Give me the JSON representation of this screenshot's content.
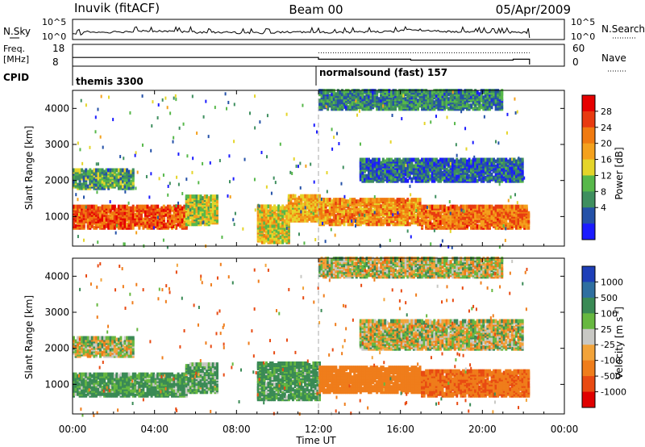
{
  "header": {
    "station": "Inuvik (fitACF)",
    "beam": "Beam 00",
    "date": "05/Apr/2009"
  },
  "sky_panel": {
    "left_label": "N.Sky",
    "right_label": "N.Search",
    "left_ticks": [
      "10^5",
      "10^0"
    ],
    "right_ticks": [
      "10^5",
      "10^0"
    ]
  },
  "freq_panel": {
    "left_label_1": "Freq.",
    "left_label_2": "[MHz]",
    "left_ticks": [
      "18",
      "8"
    ],
    "right_label": "Nave",
    "right_ticks": [
      "60",
      "0"
    ]
  },
  "cpid_panel": {
    "label": "CPID",
    "programs": [
      {
        "name": "themis 3300",
        "start_hour": 0
      },
      {
        "name": "normalsound (fast) 157",
        "start_hour": 12
      }
    ]
  },
  "x_axis": {
    "label": "Time UT",
    "ticks": [
      "00:00",
      "04:00",
      "08:00",
      "12:00",
      "16:00",
      "20:00",
      "00:00"
    ],
    "range_hours": [
      0,
      24
    ]
  },
  "power_panel": {
    "ylabel": "Slant Range [km]",
    "yticks": [
      "1000",
      "2000",
      "3000",
      "4000"
    ],
    "colorbar_label": "Power [dB]",
    "colorbar_ticks": [
      "4",
      "8",
      "12",
      "16",
      "20",
      "24",
      "28"
    ],
    "colors": [
      "#1b1bff",
      "#2451a8",
      "#3f8f5f",
      "#57b84a",
      "#e5d52a",
      "#f4a11d",
      "#f07a10",
      "#e83a10",
      "#e60000"
    ]
  },
  "velocity_panel": {
    "ylabel": "Slant Range [km]",
    "yticks": [
      "1000",
      "2000",
      "3000",
      "4000"
    ],
    "colorbar_label": "Velocity [m s",
    "colorbar_label_sup": "-1",
    "colorbar_label_end": "]",
    "colorbar_ticks": [
      "1000",
      "500",
      "100",
      "25",
      "-25",
      "-100",
      "-500",
      "-1000"
    ],
    "colors": [
      "#1e3fb8",
      "#2f6fa0",
      "#3a8a55",
      "#67b840",
      "#c8c8c4",
      "#f2a33a",
      "#ef7d1b",
      "#e84a12",
      "#e00000"
    ]
  },
  "chart_data": [
    {
      "type": "line",
      "title": "N.Sky / N.Search",
      "x": [
        0.0,
        0.5,
        1.0,
        2.0,
        3.0,
        4.0,
        5.0,
        6.0,
        8.0,
        10.0,
        12.0,
        14.0,
        16.0,
        17.0,
        18.0,
        20.0,
        22.3
      ],
      "series": [
        {
          "name": "N.Sky",
          "values": [
            1.2,
            2.0,
            1.8,
            1.9,
            2.2,
            2.1,
            1.9,
            1.7,
            1.6,
            1.8,
            1.7,
            1.9,
            2.5,
            2.2,
            1.9,
            1.7,
            1.6
          ]
        }
      ],
      "xlim": [
        0,
        24
      ]
    },
    {
      "type": "line",
      "title": "Freq. [MHz] / Nave",
      "x": [
        0.0,
        12.0,
        16.5,
        18.0,
        21.5,
        22.3
      ],
      "series": [
        {
          "name": "Freq.",
          "values": [
            12.0,
            11.0,
            10.5,
            10.5,
            11.0,
            11.0
          ]
        },
        {
          "name": "Nave",
          "values": [
            40,
            40,
            40,
            40,
            40,
            40
          ]
        }
      ],
      "xlim": [
        0,
        24
      ]
    },
    {
      "type": "heatmap",
      "title": "Power [dB]",
      "ylabel": "Slant Range [km]",
      "xlabel": "Time UT",
      "xlim": [
        0,
        24
      ],
      "ylim": [
        180,
        4500
      ],
      "color_scale": [
        0,
        30
      ],
      "bands": [
        {
          "t0": 0.0,
          "t1": 5.5,
          "r0": 700,
          "r1": 1300,
          "value": 24
        },
        {
          "t0": 0.0,
          "t1": 3.0,
          "r0": 1800,
          "r1": 2300,
          "value": 10
        },
        {
          "t0": 5.5,
          "t1": 7.0,
          "r0": 800,
          "r1": 1600,
          "value": 14
        },
        {
          "t0": 9.0,
          "t1": 10.5,
          "r0": 300,
          "r1": 1300,
          "value": 16
        },
        {
          "t0": 10.5,
          "t1": 12.0,
          "r0": 900,
          "r1": 1600,
          "value": 18
        },
        {
          "t0": 12.0,
          "t1": 17.0,
          "r0": 800,
          "r1": 1500,
          "value": 20
        },
        {
          "t0": 17.0,
          "t1": 22.3,
          "r0": 700,
          "r1": 1300,
          "value": 22
        },
        {
          "t0": 12.0,
          "t1": 21.0,
          "r0": 4000,
          "r1": 4500,
          "value": 8
        },
        {
          "t0": 14.0,
          "t1": 22.0,
          "r0": 2000,
          "r1": 2600,
          "value": 6
        }
      ]
    },
    {
      "type": "heatmap",
      "title": "Velocity [m s-1]",
      "ylabel": "Slant Range [km]",
      "xlabel": "Time UT",
      "xlim": [
        0,
        24
      ],
      "ylim": [
        180,
        4500
      ],
      "color_scale": [
        -1000,
        1000
      ],
      "bands": [
        {
          "t0": 0.0,
          "t1": 5.5,
          "r0": 700,
          "r1": 1300,
          "value": 150
        },
        {
          "t0": 0.0,
          "t1": 3.0,
          "r0": 1800,
          "r1": 2300,
          "value": 0
        },
        {
          "t0": 5.5,
          "t1": 7.0,
          "r0": 800,
          "r1": 1600,
          "value": 120
        },
        {
          "t0": 9.0,
          "t1": 12.0,
          "r0": 600,
          "r1": 1600,
          "value": 150
        },
        {
          "t0": 12.0,
          "t1": 17.0,
          "r0": 800,
          "r1": 1500,
          "value": -300
        },
        {
          "t0": 17.0,
          "t1": 22.3,
          "r0": 700,
          "r1": 1400,
          "value": -450
        },
        {
          "t0": 12.0,
          "t1": 21.0,
          "r0": 4000,
          "r1": 4500,
          "value": 0
        },
        {
          "t0": 14.0,
          "t1": 22.0,
          "r0": 2000,
          "r1": 2800,
          "value": 0
        }
      ]
    }
  ]
}
